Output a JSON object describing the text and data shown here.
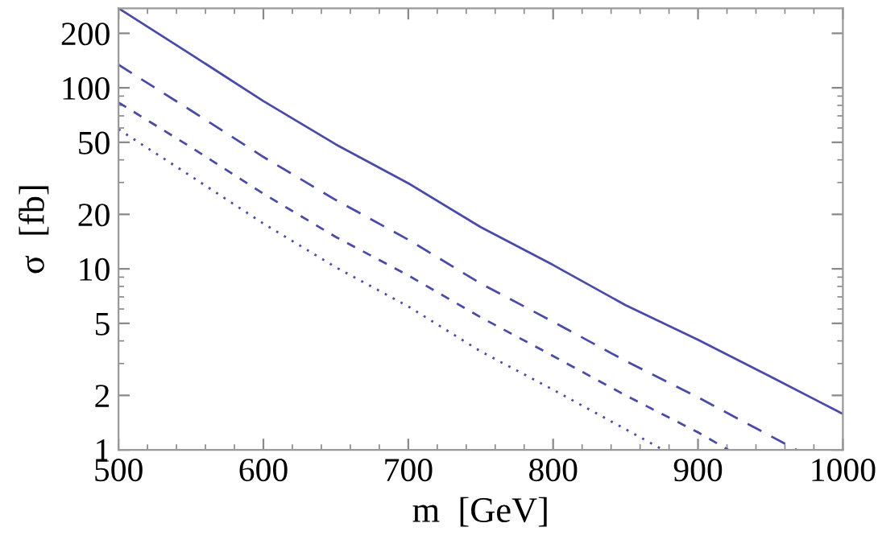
{
  "chart_data": {
    "type": "line",
    "xlabel": "m  [GeV]",
    "ylabel": "σ  [fb]",
    "log": "y",
    "grid": false,
    "legend": false,
    "xlim": [
      500,
      1000
    ],
    "xticks": [
      500,
      600,
      700,
      800,
      900,
      1000
    ],
    "ylim": [
      1,
      275
    ],
    "yticks": [
      1,
      2,
      5,
      10,
      20,
      50,
      100,
      200
    ],
    "series": [
      {
        "color": "#4a4aa8",
        "line_style": "solid",
        "x": [
          500,
          550,
          600,
          650,
          700,
          750,
          800,
          850,
          900,
          950,
          1000
        ],
        "values": [
          275,
          153,
          84.5,
          48.7,
          29.7,
          17,
          10.5,
          6.3,
          4.06,
          2.54,
          1.58
        ]
      },
      {
        "color": "#4a4aa8",
        "line_style": "dashed",
        "x": [
          500,
          550,
          600,
          650,
          700,
          750,
          800,
          850,
          900,
          968
        ],
        "values": [
          134,
          75,
          41.5,
          24,
          14.5,
          8.3,
          5.1,
          3.1,
          1.95,
          1
        ]
      },
      {
        "color": "#4a4aa8",
        "line_style": "dashed",
        "x": [
          500,
          550,
          600,
          650,
          700,
          750,
          800,
          850,
          900,
          921
        ],
        "values": [
          83,
          47,
          26,
          15,
          9.2,
          5.4,
          3.3,
          2.0,
          1.25,
          1
        ]
      },
      {
        "color": "#4a4aa8",
        "line_style": "dotted",
        "x": [
          500,
          550,
          600,
          650,
          700,
          750,
          800,
          850,
          876
        ],
        "values": [
          59,
          32.5,
          17.8,
          10.2,
          6.2,
          3.5,
          2.15,
          1.3,
          1
        ]
      }
    ]
  }
}
